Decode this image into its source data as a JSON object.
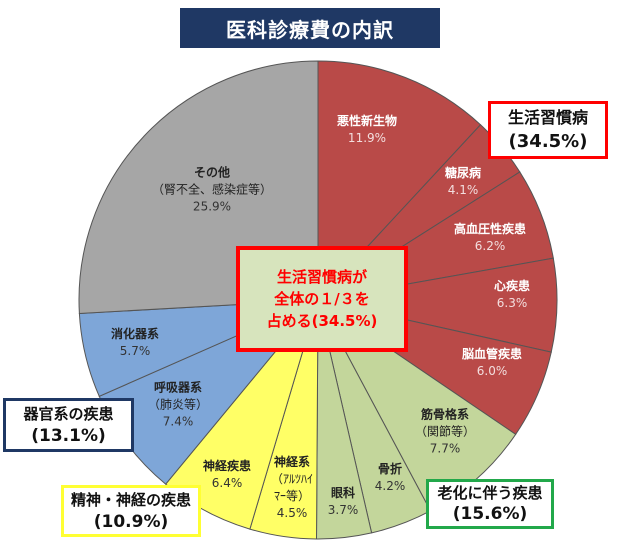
{
  "chart_data": {
    "type": "pie",
    "title": "医科診療費の内訳",
    "start": "12 o'clock, clockwise",
    "slices": [
      {
        "name": "悪性新生物",
        "value": 11.9,
        "label": "11.9%",
        "group": "lifestyle"
      },
      {
        "name": "糖尿病",
        "value": 4.1,
        "label": "4.1%",
        "group": "lifestyle"
      },
      {
        "name": "高血圧性疾患",
        "value": 6.2,
        "label": "6.2%",
        "group": "lifestyle"
      },
      {
        "name": "心疾患",
        "value": 6.3,
        "label": "6.3%",
        "group": "lifestyle"
      },
      {
        "name": "脳血管疾患",
        "value": 6.0,
        "label": "6.0%",
        "group": "lifestyle"
      },
      {
        "name": "筋骨格系",
        "sub": "（関節等）",
        "value": 7.7,
        "label": "7.7%",
        "group": "aging"
      },
      {
        "name": "骨折",
        "value": 4.2,
        "label": "4.2%",
        "group": "aging"
      },
      {
        "name": "眼科",
        "value": 3.7,
        "label": "3.7%",
        "group": "aging"
      },
      {
        "name": "神経系",
        "sub": "（ｱﾙﾂﾊｲ",
        "sub2": "ﾏｰ等）",
        "value": 4.5,
        "label": "4.5%",
        "group": "mental"
      },
      {
        "name": "神経疾患",
        "value": 6.4,
        "label": "6.4%",
        "group": "mental"
      },
      {
        "name": "呼吸器系",
        "sub": "（肺炎等）",
        "value": 7.4,
        "label": "7.4%",
        "group": "organ"
      },
      {
        "name": "消化器系",
        "value": 5.7,
        "label": "5.7%",
        "group": "organ"
      },
      {
        "name": "その他",
        "sub": "（腎不全、感染症等）",
        "value": 25.9,
        "label": "25.9%",
        "group": "other"
      }
    ],
    "groups": {
      "lifestyle": {
        "name": "生活習慣病",
        "total": "(34.5%)",
        "color": "#b94a48",
        "border": "#ff0000"
      },
      "aging": {
        "name": "老化に伴う疾患",
        "total": "(15.6%)",
        "color": "#c3d69b",
        "border": "#22a84a"
      },
      "mental": {
        "name": "精神・神経の疾患",
        "total": "(10.9%)",
        "color": "#ffff66",
        "border": "#ffff33"
      },
      "organ": {
        "name": "器官系の疾患",
        "total": "(13.1%)",
        "color": "#7ea6d8",
        "border": "#1f3864"
      },
      "other": {
        "color": "#a6a6a6"
      }
    },
    "annotation": {
      "line1": "生活習慣病が",
      "line2": "全体の１/３を",
      "line3": "占める(34.5%)"
    }
  }
}
